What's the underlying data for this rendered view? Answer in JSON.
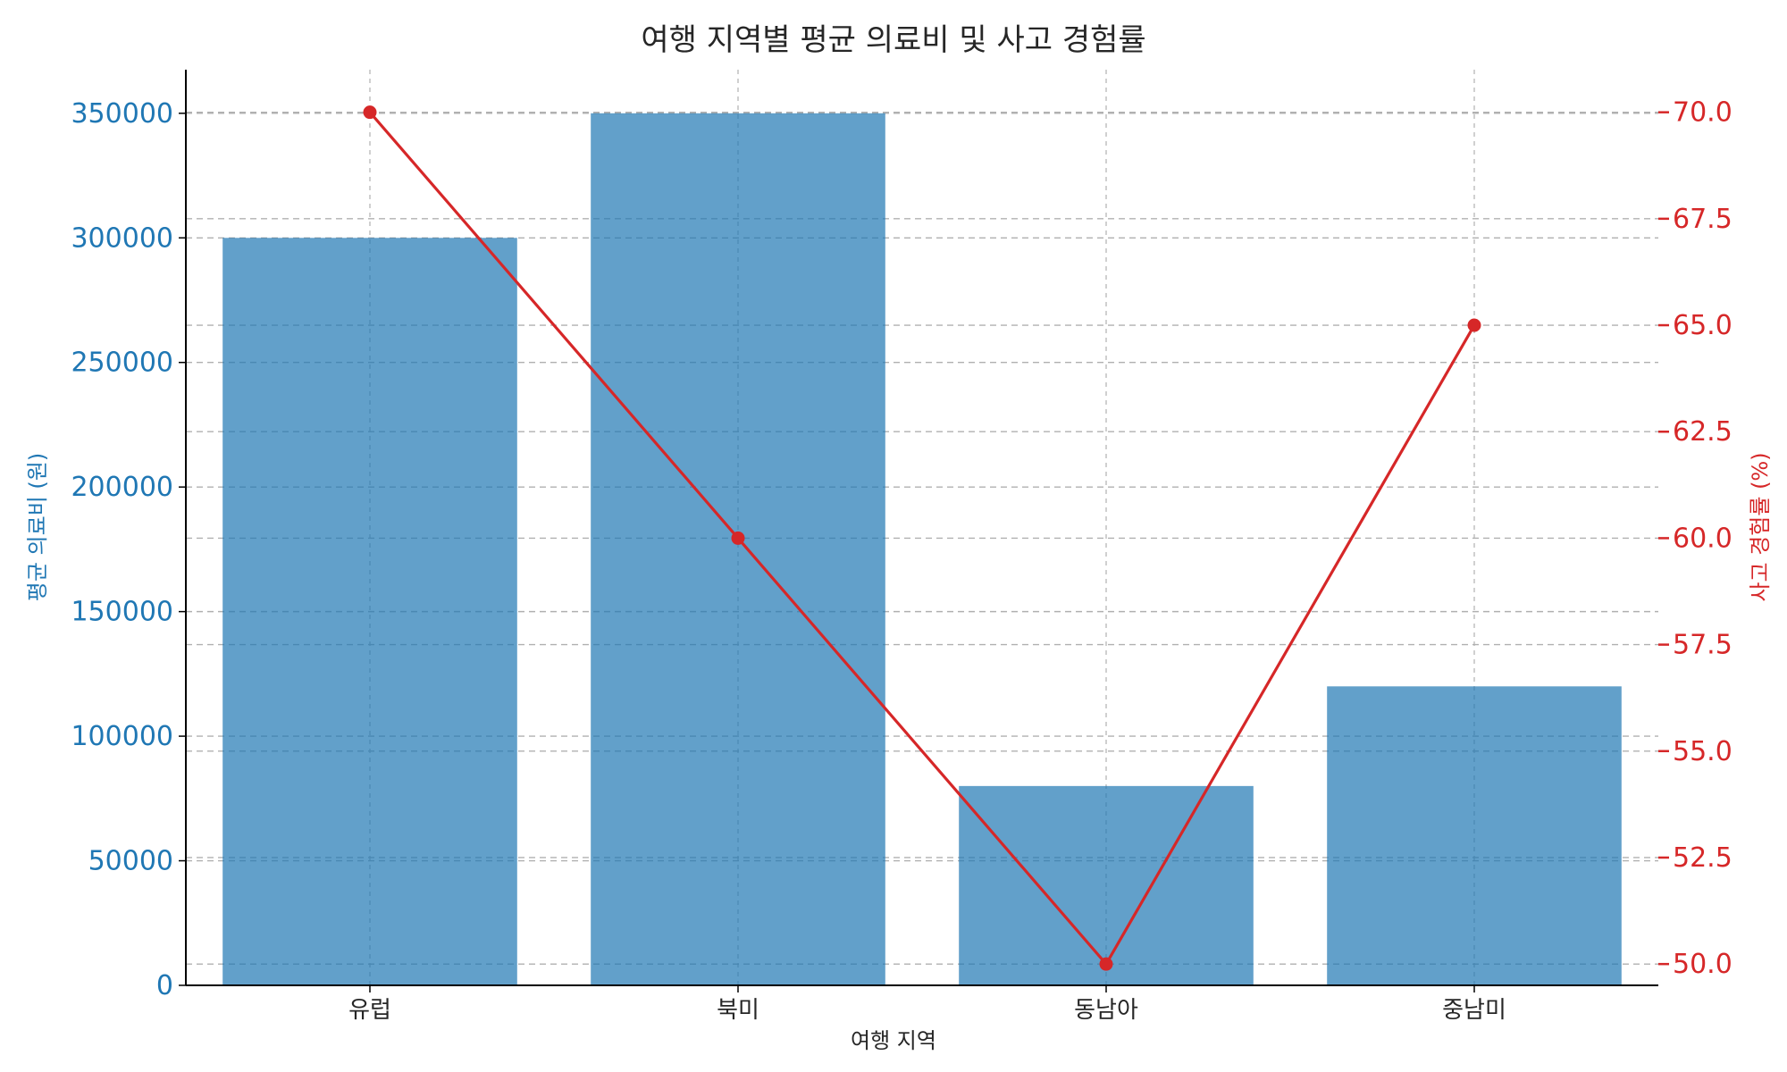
{
  "chart_data": {
    "type": "bar",
    "title": "여행 지역별 평균 의료비 및 사고 경험률",
    "xlabel": "여행 지역",
    "ylabel": "평균 의료비 (원)",
    "y2label": "사고 경험률 (%)",
    "categories": [
      "유럽",
      "북미",
      "동남아",
      "중남미"
    ],
    "series": [
      {
        "type": "bar",
        "axis": "left",
        "values": [
          300000,
          350000,
          80000,
          120000
        ],
        "color": "#1f77b4"
      },
      {
        "type": "line",
        "axis": "right",
        "values": [
          70.0,
          60.0,
          50.0,
          65.0
        ],
        "color": "#d62728",
        "marker": "circle"
      }
    ],
    "ylim": [
      0,
      367500
    ],
    "y2lim": [
      49.5,
      71.0
    ],
    "yticks": [
      0,
      50000,
      100000,
      150000,
      200000,
      250000,
      300000,
      350000
    ],
    "y2ticks": [
      "50.0",
      "52.5",
      "55.0",
      "57.5",
      "60.0",
      "62.5",
      "65.0",
      "67.5",
      "70.0"
    ],
    "grid": true,
    "left_axis_color": "#1f77b4",
    "right_axis_color": "#d62728"
  }
}
